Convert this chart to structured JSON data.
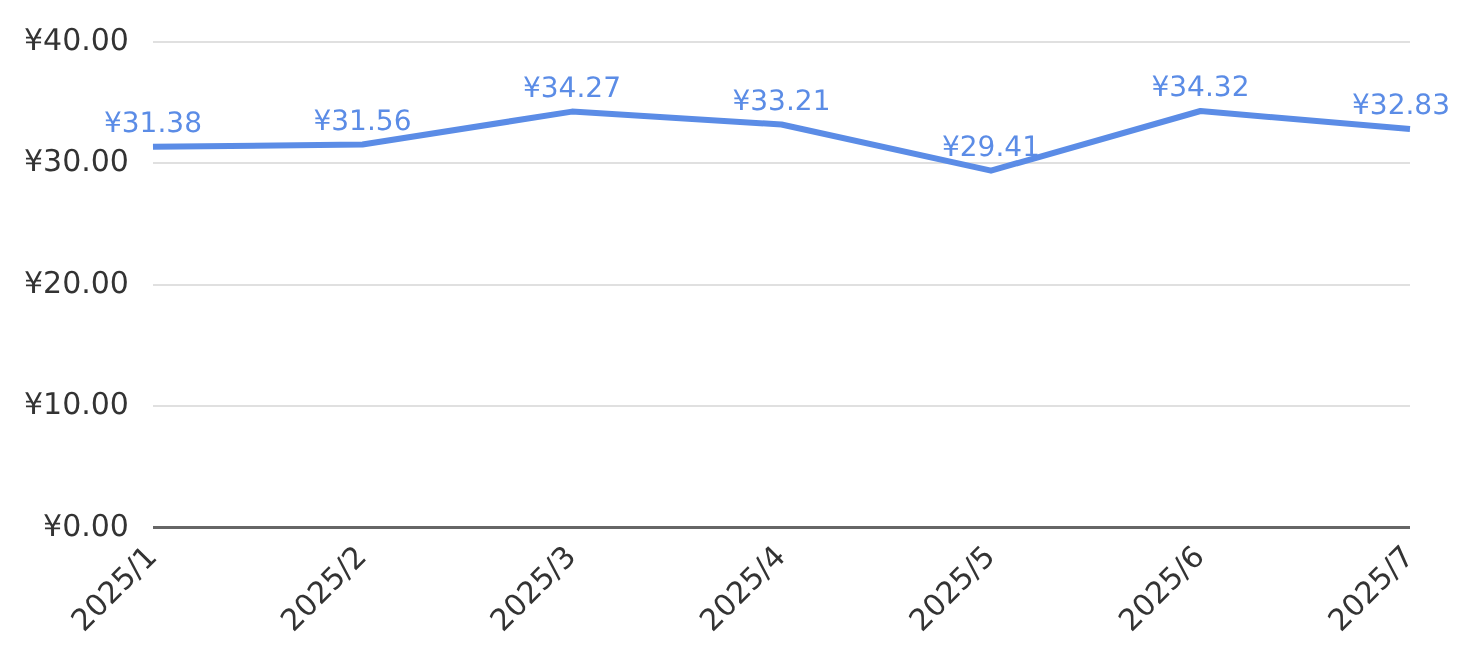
{
  "chart_data": {
    "type": "line",
    "categories": [
      "2025/1",
      "2025/2",
      "2025/3",
      "2025/4",
      "2025/5",
      "2025/6",
      "2025/7"
    ],
    "series": [
      {
        "color": "#5b8ce6",
        "values": [
          31.38,
          31.56,
          34.27,
          33.21,
          29.41,
          34.32,
          32.83
        ],
        "value_labels": [
          "¥31.38",
          "¥31.56",
          "¥34.27",
          "¥33.21",
          "¥29.41",
          "¥34.32",
          "¥32.83"
        ]
      }
    ],
    "ylim": [
      0,
      40
    ],
    "yticks": [
      {
        "value": 0,
        "label": "¥0.00"
      },
      {
        "value": 10,
        "label": "¥10.00"
      },
      {
        "value": 20,
        "label": "¥20.00"
      },
      {
        "value": 30,
        "label": "¥30.00"
      },
      {
        "value": 40,
        "label": "¥40.00"
      }
    ],
    "grid": "y",
    "legend": false,
    "marker": "none",
    "line_style": "solid"
  }
}
